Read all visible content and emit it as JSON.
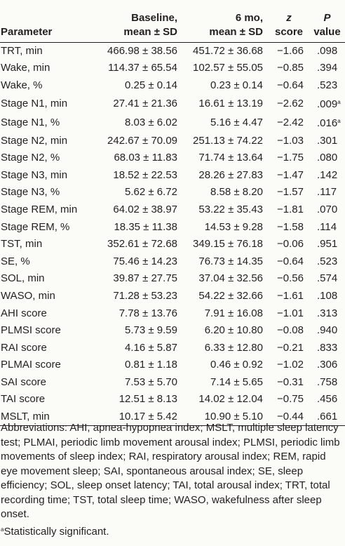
{
  "headers": {
    "parameter": "Parameter",
    "baseline_line1": "Baseline,",
    "baseline_line2": "mean ± SD",
    "six_mo_line1": "6 mo,",
    "six_mo_line2": "mean ± SD",
    "z_line1": "z",
    "z_line2": "score",
    "p_line1": "P",
    "p_line2": "value"
  },
  "rows": [
    {
      "parameter": "TRT, min",
      "baseline": "466.98 ± 38.56",
      "six_mo": "451.72 ± 36.68",
      "z": "−1.66",
      "p": ".098",
      "flag": ""
    },
    {
      "parameter": "Wake, min",
      "baseline": "114.37 ± 65.54",
      "six_mo": "102.57 ± 55.05",
      "z": "−0.85",
      "p": ".394",
      "flag": ""
    },
    {
      "parameter": "Wake, %",
      "baseline": "0.25 ± 0.14",
      "six_mo": "0.23 ± 0.14",
      "z": "−0.64",
      "p": ".523",
      "flag": ""
    },
    {
      "parameter": "Stage N1, min",
      "baseline": "27.41 ± 21.36",
      "six_mo": "16.61 ± 13.19",
      "z": "−2.62",
      "p": ".009",
      "flag": "a"
    },
    {
      "parameter": "Stage N1, %",
      "baseline": "8.03 ± 6.02",
      "six_mo": "5.16 ± 4.47",
      "z": "−2.42",
      "p": ".016",
      "flag": "a"
    },
    {
      "parameter": "Stage N2, min",
      "baseline": "242.67 ± 70.09",
      "six_mo": "251.13 ± 74.22",
      "z": "−1.03",
      "p": ".301",
      "flag": ""
    },
    {
      "parameter": "Stage N2, %",
      "baseline": "68.03 ± 11.83",
      "six_mo": "71.74 ± 13.64",
      "z": "−1.75",
      "p": ".080",
      "flag": ""
    },
    {
      "parameter": "Stage N3, min",
      "baseline": "18.52 ± 22.53",
      "six_mo": "28.26 ± 27.83",
      "z": "−1.47",
      "p": ".142",
      "flag": ""
    },
    {
      "parameter": "Stage N3, %",
      "baseline": "5.62 ± 6.72",
      "six_mo": "8.58 ± 8.20",
      "z": "−1.57",
      "p": ".117",
      "flag": ""
    },
    {
      "parameter": "Stage REM, min",
      "baseline": "64.02 ± 38.97",
      "six_mo": "53.22 ± 35.43",
      "z": "−1.81",
      "p": ".070",
      "flag": ""
    },
    {
      "parameter": "Stage REM, %",
      "baseline": "18.35 ± 11.38",
      "six_mo": "14.53 ± 9.28",
      "z": "−1.58",
      "p": ".114",
      "flag": ""
    },
    {
      "parameter": "TST, min",
      "baseline": "352.61 ± 72.68",
      "six_mo": "349.15 ± 76.18",
      "z": "−0.06",
      "p": ".951",
      "flag": ""
    },
    {
      "parameter": "SE, %",
      "baseline": "75.46 ± 14.23",
      "six_mo": "76.73 ± 14.35",
      "z": "−0.64",
      "p": ".523",
      "flag": ""
    },
    {
      "parameter": "SOL, min",
      "baseline": "39.87 ± 27.75",
      "six_mo": "37.04 ± 32.56",
      "z": "−0.56",
      "p": ".574",
      "flag": ""
    },
    {
      "parameter": "WASO, min",
      "baseline": "71.28 ± 53.23",
      "six_mo": "54.22 ± 32.66",
      "z": "−1.61",
      "p": ".108",
      "flag": ""
    },
    {
      "parameter": "AHI score",
      "baseline": "7.78 ± 13.76",
      "six_mo": "7.91 ± 16.08",
      "z": "−1.01",
      "p": ".313",
      "flag": ""
    },
    {
      "parameter": "PLMSI score",
      "baseline": "5.73 ± 9.59",
      "six_mo": "6.20 ± 10.80",
      "z": "−0.08",
      "p": ".940",
      "flag": ""
    },
    {
      "parameter": "RAI score",
      "baseline": "4.16 ± 5.87",
      "six_mo": "6.33 ± 12.80",
      "z": "−0.21",
      "p": ".833",
      "flag": ""
    },
    {
      "parameter": "PLMAI score",
      "baseline": "0.81 ± 1.18",
      "six_mo": "0.46 ± 0.92",
      "z": "−1.02",
      "p": ".306",
      "flag": ""
    },
    {
      "parameter": "SAI score",
      "baseline": "7.53 ± 5.70",
      "six_mo": "7.14 ± 5.65",
      "z": "−0.31",
      "p": ".758",
      "flag": ""
    },
    {
      "parameter": "TAI score",
      "baseline": "12.51 ± 8.13",
      "six_mo": "14.02 ± 12.04",
      "z": "−0.75",
      "p": ".456",
      "flag": ""
    },
    {
      "parameter": "MSLT, min",
      "baseline": "10.17 ± 5.42",
      "six_mo": "10.90 ± 5.10",
      "z": "−0.44",
      "p": ".661",
      "flag": ""
    }
  ],
  "footnotes": {
    "abbreviations": "Abbreviations: AHI, apnea-hypopnea index; MSLT, multiple sleep latency test; PLMAI, periodic limb movement arousal index; PLMSI, periodic limb movements of sleep index; RAI, respiratory arousal index; REM, rapid eye movement sleep; SAI, spontaneous arousal index; SE, sleep efficiency; SOL, sleep onset latency; TAI, total arousal index; TRT, total recording time; TST, total sleep time; WASO, wakefulness after sleep onset.",
    "significance_marker": "a",
    "significance_text": "Statistically significant."
  }
}
